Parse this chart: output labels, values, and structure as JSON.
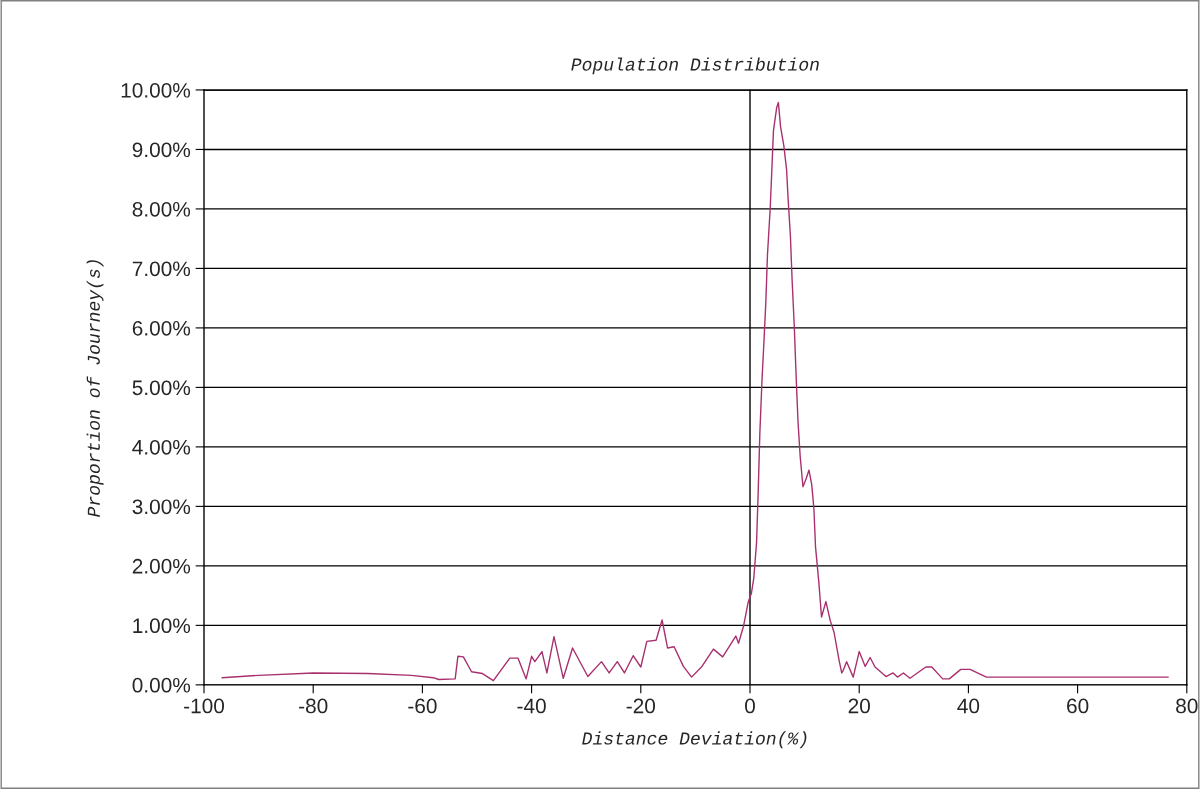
{
  "chart_data": {
    "type": "line",
    "title": "Population Distribution",
    "xlabel": "Distance Deviation(%)",
    "ylabel": "Proportion of Journey(s)",
    "x": [
      -96.7,
      -90,
      -80,
      -70,
      -62,
      -58,
      -57,
      -54,
      -53.5,
      -52.5,
      -51,
      -49,
      -47,
      -44,
      -42.5,
      -41,
      -40,
      -39.4,
      -38.1,
      -37.2,
      -35.9,
      -34.2,
      -32.5,
      -29.7,
      -27.2,
      -25.8,
      -24.3,
      -23,
      -21.4,
      -20,
      -18.9,
      -17.2,
      -16.1,
      -15.1,
      -13.9,
      -12.2,
      -10.7,
      -8.8,
      -6.7,
      -5,
      -3.7,
      -2.6,
      -2.1,
      -1.2,
      -0.5,
      -0.3,
      0.26,
      0.7,
      1.2,
      1.5,
      1.8,
      2.2,
      2.6,
      2.9,
      3.2,
      3.7,
      4.0,
      4.3,
      4.9,
      5.2,
      5.6,
      6.2,
      6.7,
      7.0,
      7.4,
      7.7,
      8.1,
      8.5,
      8.8,
      9.2,
      9.7,
      10.3,
      10.8,
      11.3,
      11.7,
      12.0,
      12.6,
      13.1,
      13.9,
      14.7,
      15.4,
      16.3,
      16.8,
      17.0,
      17.7,
      18.9,
      20.0,
      21.1,
      22.0,
      22.9,
      24.9,
      26.2,
      27.0,
      28.1,
      29.3,
      32.2,
      33.3,
      35.3,
      36.5,
      38.6,
      40.3,
      43.3,
      76.6
    ],
    "series": [
      {
        "color": "#a8306e",
        "values": [
          0.12,
          0.16,
          0.2,
          0.19,
          0.16,
          0.12,
          0.09,
          0.1,
          0.48,
          0.47,
          0.22,
          0.19,
          0.07,
          0.45,
          0.45,
          0.1,
          0.48,
          0.39,
          0.56,
          0.2,
          0.81,
          0.11,
          0.62,
          0.14,
          0.39,
          0.2,
          0.39,
          0.2,
          0.49,
          0.3,
          0.73,
          0.75,
          1.09,
          0.62,
          0.64,
          0.31,
          0.13,
          0.31,
          0.6,
          0.47,
          0.66,
          0.82,
          0.7,
          0.98,
          1.31,
          1.4,
          1.54,
          1.8,
          2.39,
          3.24,
          4.22,
          5.13,
          5.85,
          6.44,
          7.23,
          8.01,
          8.66,
          9.32,
          9.71,
          9.79,
          9.38,
          9.06,
          8.66,
          8.14,
          7.55,
          6.83,
          6.05,
          5.07,
          4.41,
          3.83,
          3.33,
          3.47,
          3.61,
          3.37,
          2.97,
          2.32,
          1.73,
          1.14,
          1.4,
          1.08,
          0.88,
          0.42,
          0.2,
          0.23,
          0.39,
          0.13,
          0.56,
          0.31,
          0.46,
          0.3,
          0.14,
          0.2,
          0.13,
          0.2,
          0.11,
          0.3,
          0.3,
          0.1,
          0.1,
          0.26,
          0.26,
          0.13,
          0.13
        ]
      }
    ],
    "xlim": [
      -100,
      80
    ],
    "xticks": [
      -100,
      -80,
      -60,
      -40,
      -20,
      0,
      20,
      40,
      60,
      80
    ],
    "ylim": [
      0,
      10
    ],
    "yticks": [
      {
        "value": 0,
        "label": "0.00%"
      },
      {
        "value": 1,
        "label": "1.00%"
      },
      {
        "value": 2,
        "label": "2.00%"
      },
      {
        "value": 3,
        "label": "3.00%"
      },
      {
        "value": 4,
        "label": "4.00%"
      },
      {
        "value": 5,
        "label": "5.00%"
      },
      {
        "value": 6,
        "label": "6.00%"
      },
      {
        "value": 7,
        "label": "7.00%"
      },
      {
        "value": 8,
        "label": "8.00%"
      },
      {
        "value": 9,
        "label": "9.00%"
      },
      {
        "value": 10,
        "label": "10.00%"
      }
    ],
    "grid": "y",
    "legend": false,
    "marker": "none",
    "line_style": "solid",
    "ref_lines": [
      {
        "axis": "x",
        "value": 0,
        "color": "#000000"
      }
    ]
  }
}
